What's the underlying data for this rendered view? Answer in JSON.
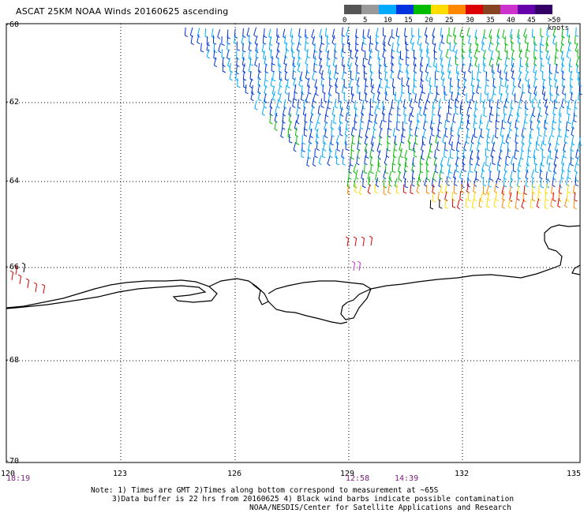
{
  "title": "ASCAT 25KM NOAA Winds 20160625 ascending",
  "legend": {
    "bins": [
      {
        "color": "#555555"
      },
      {
        "color": "#999999"
      },
      {
        "color": "#00aaff"
      },
      {
        "color": "#0033dd"
      },
      {
        "color": "#00bb00"
      },
      {
        "color": "#ffdd00"
      },
      {
        "color": "#ff8800"
      },
      {
        "color": "#dd0000"
      },
      {
        "color": "#884422"
      },
      {
        "color": "#cc33cc"
      },
      {
        "color": "#6600aa"
      },
      {
        "color": "#330066"
      }
    ],
    "tick_labels": [
      "0",
      "5",
      "10",
      "15",
      "20",
      "25",
      "30",
      "35",
      "40",
      "45",
      ">50 knots"
    ]
  },
  "map": {
    "lat_labels": [
      "-60",
      "-62",
      "-64",
      "-66",
      "-68",
      "-70"
    ],
    "lon_labels": [
      "120",
      "123",
      "126",
      "129",
      "132",
      "135"
    ],
    "time_labels": [
      "18:19",
      "12:58",
      "14:39"
    ]
  },
  "notes": {
    "line1": "Note: 1) Times are GMT 2)Times along bottom correspond to measurement at ~65S",
    "line2": "3)Data buffer is 22 hrs from 20160625 4) Black wind barbs indicate possible contamination",
    "line3": "NOAA/NESDIS/Center for Satellite Applications and Research"
  }
}
